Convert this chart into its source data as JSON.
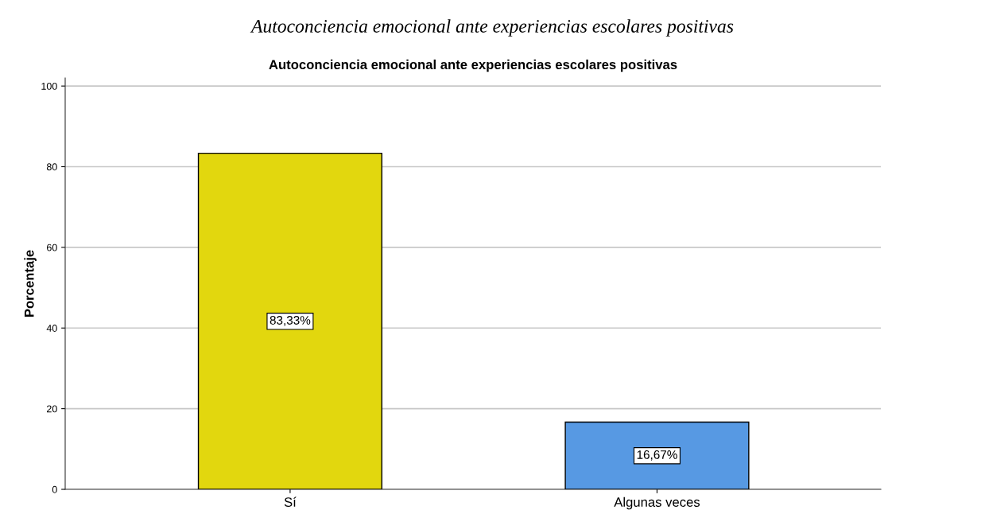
{
  "chart_data": {
    "type": "bar",
    "title": "Autoconciencia emocional ante experiencias escolares positivas",
    "ylabel": "Porcentaje",
    "annotations": [
      "Autoconciencia emocional ante experiencias escolares positivas"
    ],
    "categories": [
      "Sí",
      "Algunas veces"
    ],
    "values": [
      83.33,
      16.67
    ],
    "value_labels": [
      "83,33%",
      "16,67%"
    ],
    "colors": [
      "#e2d70e",
      "#5799e3"
    ],
    "ylim": [
      0,
      102
    ],
    "yticks": [
      0,
      20,
      40,
      60,
      80,
      100
    ],
    "grid": "y"
  }
}
